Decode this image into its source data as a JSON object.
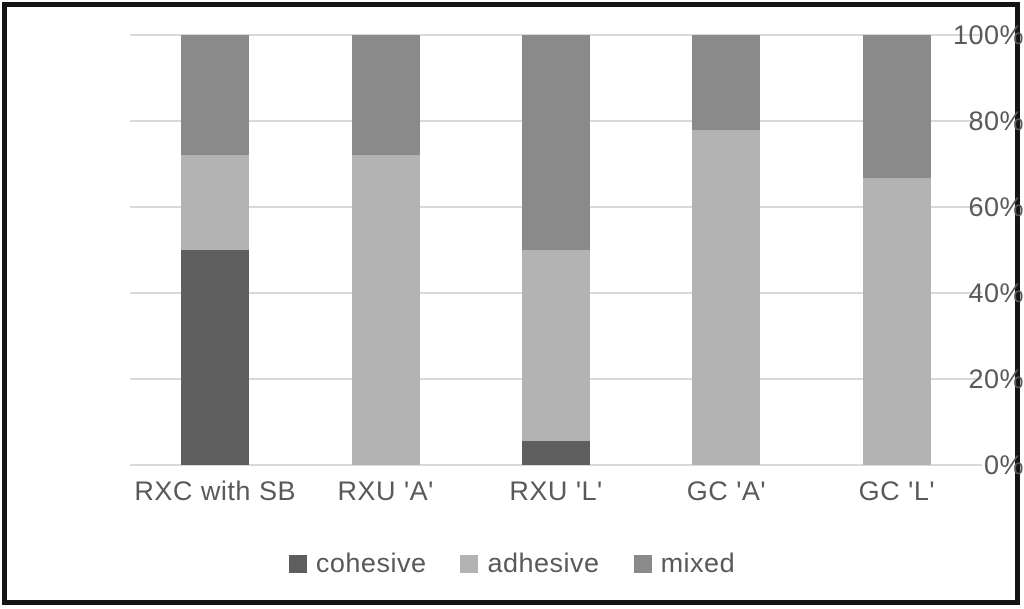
{
  "chart_data": {
    "type": "bar",
    "stacked": true,
    "percent_stacked": true,
    "title": "",
    "xlabel": "",
    "ylabel": "",
    "categories": [
      "RXC with SB",
      "RXU 'A'",
      "RXU 'L'",
      "GC 'A'",
      "GC 'L'"
    ],
    "series": [
      {
        "name": "cohesive",
        "color": "#5e5e5e",
        "values": [
          50.0,
          0.0,
          5.6,
          0.0,
          0.0
        ]
      },
      {
        "name": "adhesive",
        "color": "#b3b3b3",
        "values": [
          22.2,
          72.2,
          44.4,
          77.8,
          66.7
        ]
      },
      {
        "name": "mixed",
        "color": "#8a8a8a",
        "values": [
          27.8,
          27.8,
          50.0,
          22.2,
          33.3
        ]
      }
    ],
    "y_axis": {
      "min": 0,
      "max": 100,
      "tick_step": 20,
      "ticks": [
        "0%",
        "20%",
        "40%",
        "60%",
        "80%",
        "100%"
      ]
    },
    "legend": [
      "cohesive",
      "adhesive",
      "mixed"
    ],
    "legend_position": "bottom",
    "grid": true,
    "colors": {
      "gridline": "#d9d9d9",
      "axis_text": "#595959",
      "frame_border": "#141414",
      "background": "#ffffff"
    }
  }
}
